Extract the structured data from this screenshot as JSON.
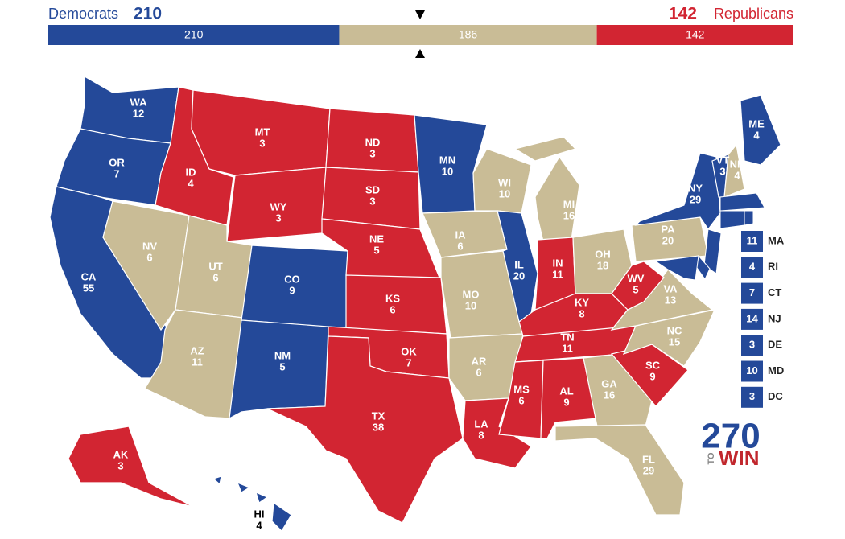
{
  "header": {
    "dem_label": "Democrats",
    "dem_total": 210,
    "rep_total": 142,
    "rep_label": "Republicans"
  },
  "bar": [
    {
      "value": 210,
      "color": "#244999"
    },
    {
      "value": 186,
      "color": "#c9bc96"
    },
    {
      "value": 142,
      "color": "#d22532"
    }
  ],
  "states": [
    {
      "abbr": "WA",
      "votes": 12,
      "color": "#244999"
    },
    {
      "abbr": "OR",
      "votes": 7,
      "color": "#244999"
    },
    {
      "abbr": "CA",
      "votes": 55,
      "color": "#244999"
    },
    {
      "abbr": "NV",
      "votes": 6,
      "color": "#c9bc96"
    },
    {
      "abbr": "ID",
      "votes": 4,
      "color": "#d22532"
    },
    {
      "abbr": "MT",
      "votes": 3,
      "color": "#d22532"
    },
    {
      "abbr": "WY",
      "votes": 3,
      "color": "#d22532"
    },
    {
      "abbr": "UT",
      "votes": 6,
      "color": "#c9bc96"
    },
    {
      "abbr": "AZ",
      "votes": 11,
      "color": "#c9bc96"
    },
    {
      "abbr": "CO",
      "votes": 9,
      "color": "#244999"
    },
    {
      "abbr": "NM",
      "votes": 5,
      "color": "#244999"
    },
    {
      "abbr": "ND",
      "votes": 3,
      "color": "#d22532"
    },
    {
      "abbr": "SD",
      "votes": 3,
      "color": "#d22532"
    },
    {
      "abbr": "NE",
      "votes": 5,
      "color": "#d22532"
    },
    {
      "abbr": "KS",
      "votes": 6,
      "color": "#d22532"
    },
    {
      "abbr": "OK",
      "votes": 7,
      "color": "#d22532"
    },
    {
      "abbr": "TX",
      "votes": 38,
      "color": "#d22532"
    },
    {
      "abbr": "MN",
      "votes": 10,
      "color": "#244999"
    },
    {
      "abbr": "IA",
      "votes": 6,
      "color": "#c9bc96"
    },
    {
      "abbr": "MO",
      "votes": 10,
      "color": "#c9bc96"
    },
    {
      "abbr": "AR",
      "votes": 6,
      "color": "#c9bc96"
    },
    {
      "abbr": "LA",
      "votes": 8,
      "color": "#d22532"
    },
    {
      "abbr": "WI",
      "votes": 10,
      "color": "#c9bc96"
    },
    {
      "abbr": "IL",
      "votes": 20,
      "color": "#244999"
    },
    {
      "abbr": "MI",
      "votes": 16,
      "color": "#c9bc96"
    },
    {
      "abbr": "IN",
      "votes": 11,
      "color": "#d22532"
    },
    {
      "abbr": "OH",
      "votes": 18,
      "color": "#c9bc96"
    },
    {
      "abbr": "KY",
      "votes": 8,
      "color": "#d22532"
    },
    {
      "abbr": "TN",
      "votes": 11,
      "color": "#d22532"
    },
    {
      "abbr": "MS",
      "votes": 6,
      "color": "#d22532"
    },
    {
      "abbr": "AL",
      "votes": 9,
      "color": "#d22532"
    },
    {
      "abbr": "GA",
      "votes": 16,
      "color": "#c9bc96"
    },
    {
      "abbr": "FL",
      "votes": 29,
      "color": "#c9bc96"
    },
    {
      "abbr": "SC",
      "votes": 9,
      "color": "#d22532"
    },
    {
      "abbr": "NC",
      "votes": 15,
      "color": "#c9bc96"
    },
    {
      "abbr": "VA",
      "votes": 13,
      "color": "#c9bc96"
    },
    {
      "abbr": "WV",
      "votes": 5,
      "color": "#d22532"
    },
    {
      "abbr": "PA",
      "votes": 20,
      "color": "#c9bc96"
    },
    {
      "abbr": "NY",
      "votes": 29,
      "color": "#244999"
    },
    {
      "abbr": "ME",
      "votes": 4,
      "color": "#244999"
    },
    {
      "abbr": "VT",
      "votes": 3,
      "color": "#244999"
    },
    {
      "abbr": "NH",
      "votes": 4,
      "color": "#c9bc96"
    },
    {
      "abbr": "AK",
      "votes": 3,
      "color": "#d22532"
    },
    {
      "abbr": "HI",
      "votes": 4,
      "color": "#244999"
    }
  ],
  "callouts": [
    {
      "abbr": "MA",
      "votes": 11
    },
    {
      "abbr": "RI",
      "votes": 4
    },
    {
      "abbr": "CT",
      "votes": 7
    },
    {
      "abbr": "NJ",
      "votes": 14
    },
    {
      "abbr": "DE",
      "votes": 3
    },
    {
      "abbr": "MD",
      "votes": 10
    },
    {
      "abbr": "DC",
      "votes": 3
    }
  ],
  "logo": {
    "number": "270",
    "to": "TO",
    "win": "WIN"
  }
}
